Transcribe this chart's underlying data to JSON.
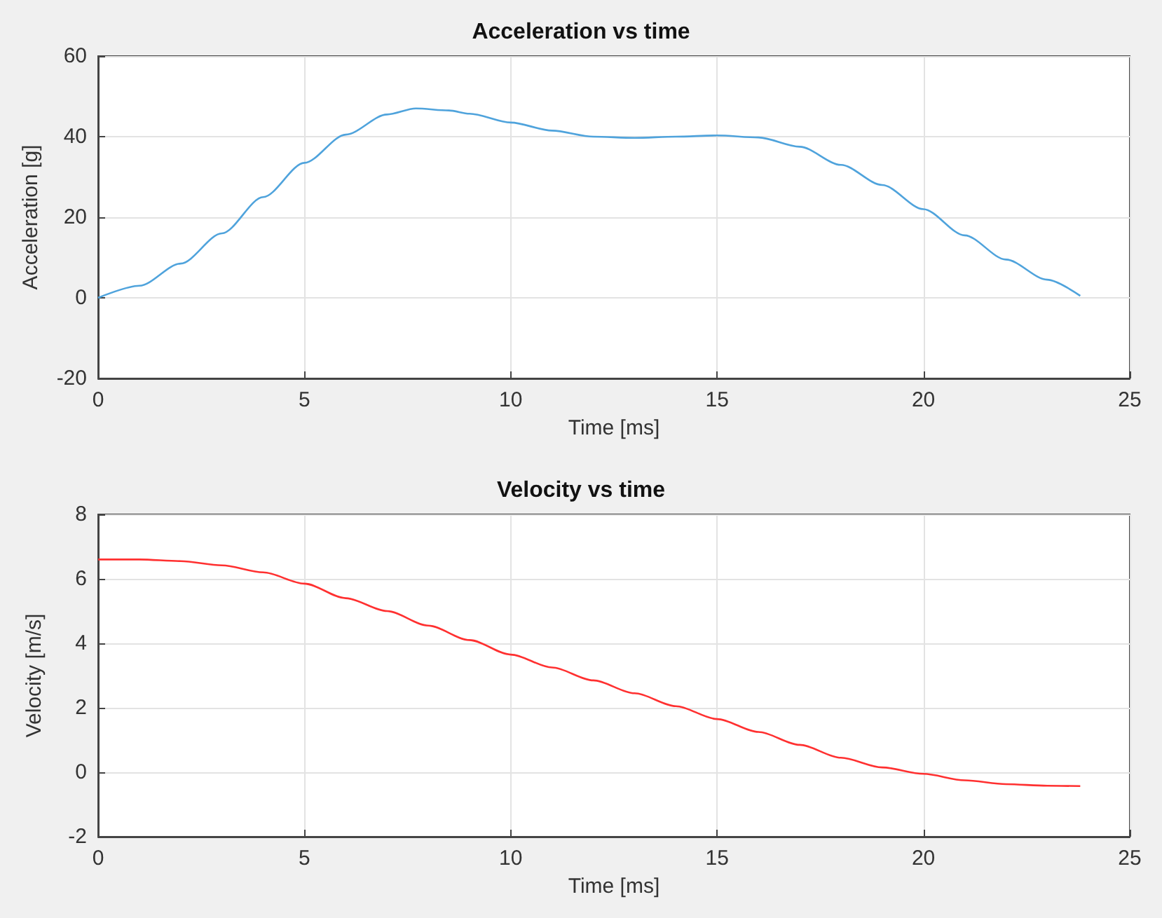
{
  "chart_data": [
    {
      "type": "line",
      "title": "Acceleration vs time",
      "xlabel": "Time [ms]",
      "ylabel": "Acceleration [g]",
      "xlim": [
        0,
        25
      ],
      "xticks": [
        0,
        5,
        10,
        15,
        20,
        25
      ],
      "ylim": [
        -20,
        60
      ],
      "yticks": [
        -20,
        0,
        20,
        40,
        60
      ],
      "grid": true,
      "marker": "none",
      "series": [
        {
          "color": "#4fa3dc",
          "x": [
            0,
            1,
            2,
            3,
            4,
            5,
            6,
            7,
            7.7,
            8.5,
            9,
            10,
            11,
            12,
            13,
            14,
            15,
            16,
            17,
            18,
            19,
            20,
            21,
            22,
            23,
            23.8
          ],
          "values": [
            0,
            3,
            8.5,
            16,
            25,
            33.5,
            40.5,
            45.5,
            47,
            46.5,
            45.7,
            43.5,
            41.5,
            40,
            39.7,
            40,
            40.3,
            39.8,
            37.5,
            33,
            28,
            22,
            15.5,
            9.5,
            4.5,
            0.5
          ]
        }
      ]
    },
    {
      "type": "line",
      "title": "Velocity vs time",
      "xlabel": "Time [ms]",
      "ylabel": "Velocity [m/s]",
      "xlim": [
        0,
        25
      ],
      "xticks": [
        0,
        5,
        10,
        15,
        20,
        25
      ],
      "ylim": [
        -2,
        8
      ],
      "yticks": [
        -2,
        0,
        2,
        4,
        6,
        8
      ],
      "grid": true,
      "marker": "none",
      "series": [
        {
          "color": "#ff3030",
          "x": [
            0,
            1,
            2,
            3,
            4,
            5,
            6,
            7,
            8,
            9,
            10,
            11,
            12,
            13,
            14,
            15,
            16,
            17,
            18,
            19,
            20,
            21,
            22,
            23,
            23.8
          ],
          "values": [
            6.6,
            6.6,
            6.55,
            6.42,
            6.2,
            5.85,
            5.4,
            5,
            4.55,
            4.1,
            3.65,
            3.25,
            2.85,
            2.45,
            2.05,
            1.65,
            1.25,
            0.85,
            0.45,
            0.15,
            -0.05,
            -0.25,
            -0.37,
            -0.42,
            -0.43
          ]
        }
      ]
    }
  ]
}
